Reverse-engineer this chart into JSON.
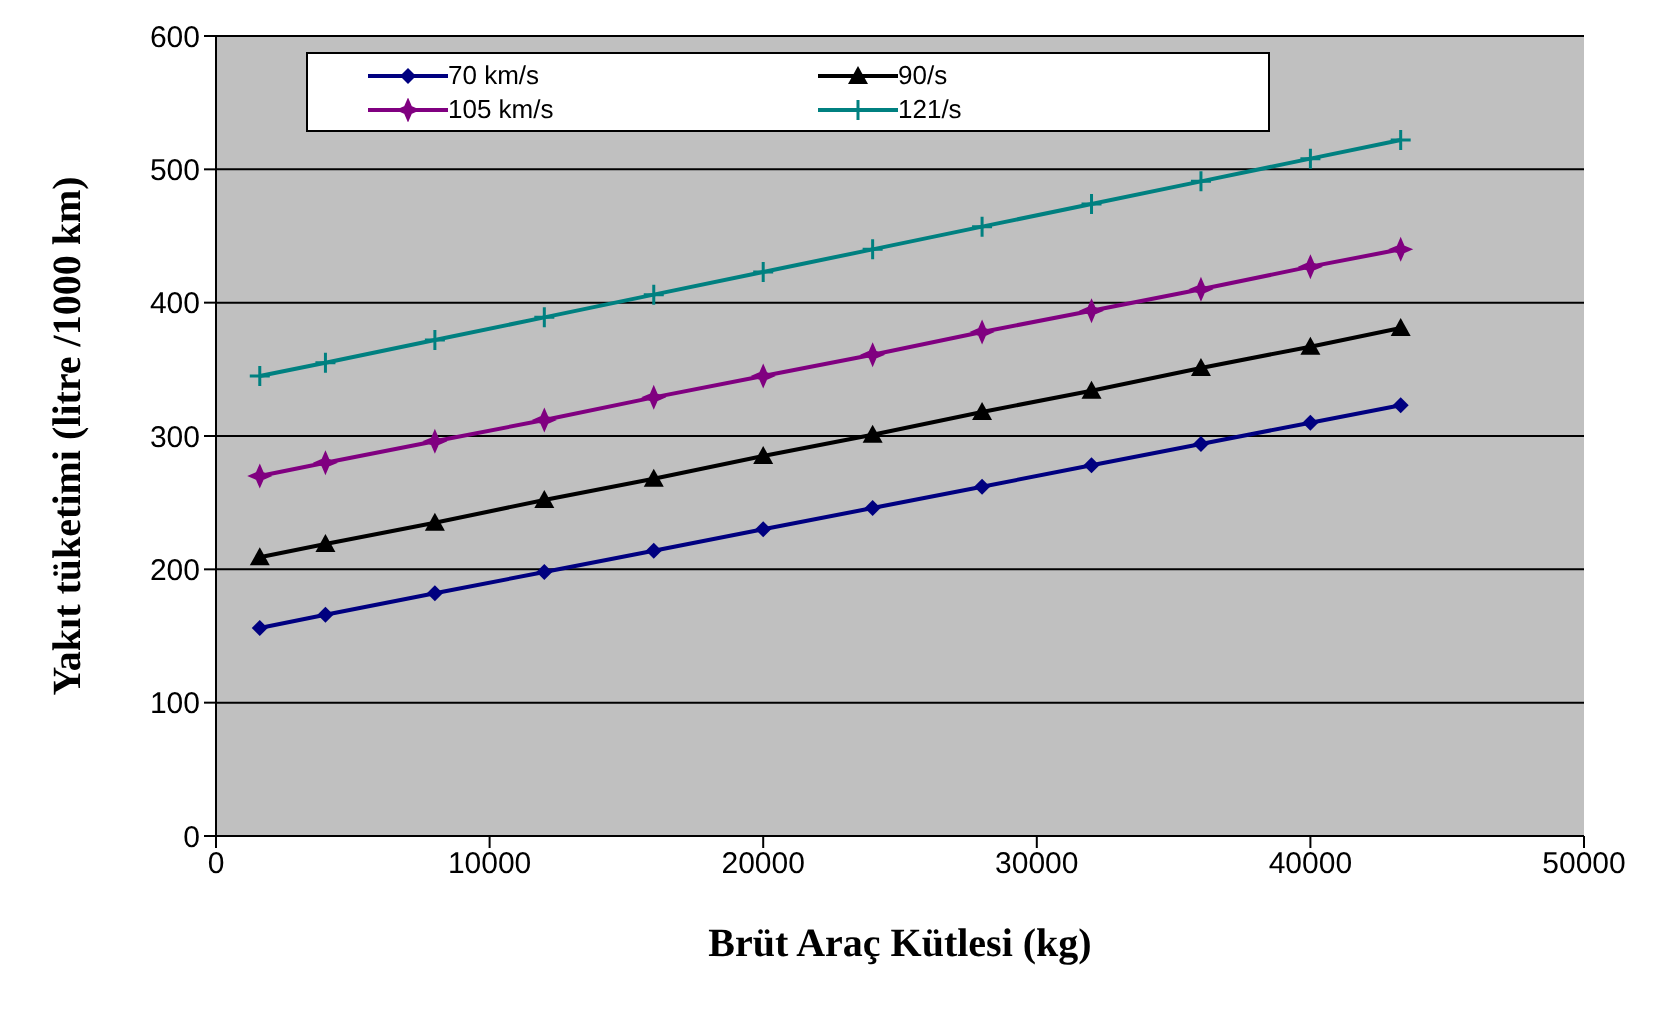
{
  "chart_data": {
    "type": "line",
    "xlabel": "Brüt Araç Kütlesi (kg)",
    "ylabel": "Yakıt tüketimi (litre /1000 km)",
    "x": [
      1600,
      4000,
      8000,
      12000,
      16000,
      20000,
      24000,
      28000,
      32000,
      36000,
      40000,
      43300
    ],
    "series": [
      {
        "name": "70 km/s",
        "color": "#000080",
        "marker": "diamond",
        "values": [
          156,
          166,
          182,
          198,
          214,
          230,
          246,
          262,
          278,
          294,
          310,
          323
        ]
      },
      {
        "name": "90/s",
        "color": "#000000",
        "marker": "triangle",
        "values": [
          209,
          219,
          235,
          252,
          268,
          285,
          301,
          318,
          334,
          351,
          367,
          381
        ]
      },
      {
        "name": "105 km/s",
        "color": "#800080",
        "marker": "star",
        "values": [
          270,
          280,
          296,
          312,
          329,
          345,
          361,
          378,
          394,
          410,
          427,
          440
        ]
      },
      {
        "name": "121/s",
        "color": "#008080",
        "marker": "cross",
        "values": [
          345,
          355,
          372,
          389,
          406,
          423,
          440,
          457,
          474,
          491,
          508,
          522
        ]
      }
    ],
    "xlim": [
      0,
      50000
    ],
    "xticks": [
      0,
      10000,
      20000,
      30000,
      40000,
      50000
    ],
    "ylim": [
      0,
      600
    ],
    "yticks": [
      0,
      100,
      200,
      300,
      400,
      500,
      600
    ],
    "grid": "y",
    "legend": "top left",
    "line_style": "solid"
  }
}
